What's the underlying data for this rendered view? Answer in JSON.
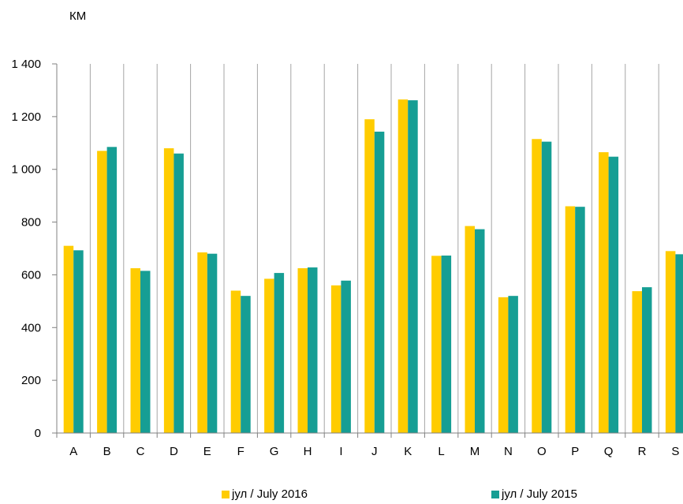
{
  "chart_data": {
    "type": "bar",
    "unit_label": "КМ",
    "categories": [
      "A",
      "B",
      "C",
      "D",
      "E",
      "F",
      "G",
      "H",
      "I",
      "J",
      "K",
      "L",
      "M",
      "N",
      "O",
      "P",
      "Q",
      "R",
      "S"
    ],
    "series": [
      {
        "name": "јул / July 2016",
        "color": "#FFCC00",
        "values": [
          710,
          1070,
          625,
          1080,
          685,
          540,
          585,
          625,
          560,
          1190,
          1265,
          672,
          785,
          515,
          1115,
          860,
          1065,
          538,
          690
        ]
      },
      {
        "name": "јул / July 2015",
        "color": "#169E94",
        "values": [
          693,
          1085,
          615,
          1060,
          680,
          520,
          607,
          628,
          578,
          1143,
          1262,
          673,
          773,
          520,
          1105,
          858,
          1048,
          553,
          678
        ]
      }
    ],
    "ylim": [
      0,
      1400
    ],
    "yticks": [
      0,
      200,
      400,
      600,
      800,
      1000,
      1200,
      1400
    ],
    "ytick_labels": [
      "0",
      "200",
      "400",
      "600",
      "800",
      "1 000",
      "1 200",
      "1 400"
    ],
    "grid": "vertical",
    "legend_position": "bottom"
  }
}
